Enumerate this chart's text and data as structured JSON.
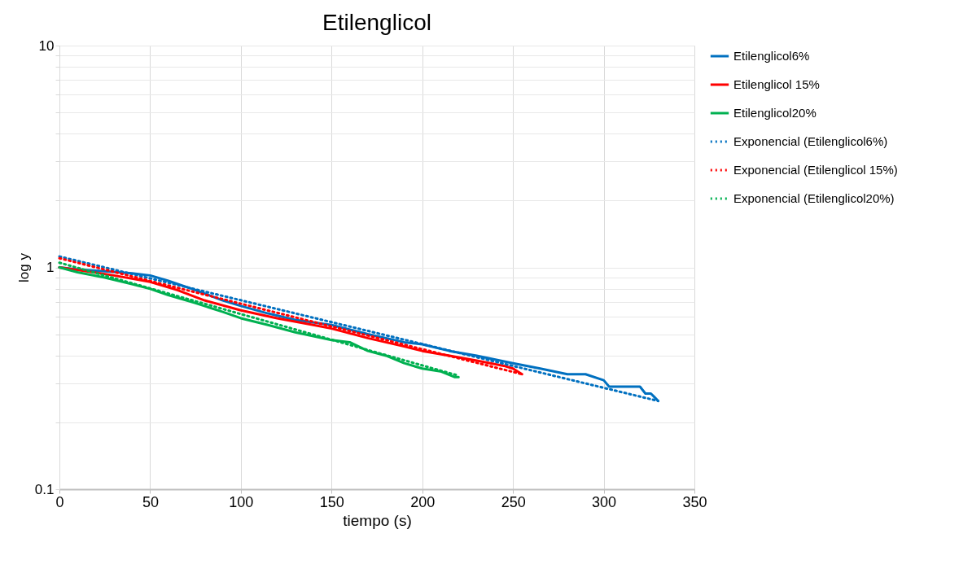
{
  "chart_data": {
    "type": "line",
    "title": "Etilenglicol",
    "xlabel": "tiempo (s)",
    "ylabel": "log y",
    "log": "y",
    "grid": true,
    "legend": "right",
    "marker": "none",
    "xlim": [
      0,
      350
    ],
    "xticks": [
      0,
      50,
      100,
      150,
      200,
      250,
      300,
      350
    ],
    "ylim": [
      0.1,
      10
    ],
    "yticks": [
      0.1,
      {
        "value": 0.2,
        "label": null
      },
      {
        "value": 0.3,
        "label": null
      },
      {
        "value": 0.4,
        "label": null
      },
      {
        "value": 0.5,
        "label": null
      },
      {
        "value": 0.6,
        "label": null
      },
      {
        "value": 0.7,
        "label": null
      },
      {
        "value": 0.8,
        "label": null
      },
      {
        "value": 0.9,
        "label": null
      },
      1,
      {
        "value": 2,
        "label": null
      },
      {
        "value": 3,
        "label": null
      },
      {
        "value": 4,
        "label": null
      },
      {
        "value": 5,
        "label": null
      },
      {
        "value": 6,
        "label": null
      },
      {
        "value": 7,
        "label": null
      },
      {
        "value": 8,
        "label": null
      },
      {
        "value": 9,
        "label": null
      },
      10
    ],
    "series": [
      {
        "name": "Etilenglicol6%",
        "color": "#0070c0",
        "line_style": "solid",
        "x": [
          0,
          10,
          25,
          40,
          50,
          60,
          75,
          90,
          100,
          115,
          130,
          150,
          170,
          190,
          200,
          215,
          230,
          250,
          265,
          280,
          290,
          300,
          303,
          320,
          323,
          326,
          328,
          330
        ],
        "values": [
          1,
          0.98,
          0.96,
          0.94,
          0.92,
          0.87,
          0.79,
          0.71,
          0.67,
          0.62,
          0.58,
          0.55,
          0.5,
          0.46,
          0.45,
          0.42,
          0.4,
          0.37,
          0.35,
          0.33,
          0.33,
          0.31,
          0.29,
          0.29,
          0.27,
          0.27,
          0.26,
          0.25
        ]
      },
      {
        "name": "Etilenglicol 15%",
        "color": "#ff0000",
        "line_style": "solid",
        "x": [
          0,
          15,
          30,
          50,
          65,
          80,
          100,
          120,
          140,
          150,
          170,
          190,
          200,
          215,
          230,
          245,
          250,
          255
        ],
        "values": [
          1,
          0.96,
          0.92,
          0.86,
          0.79,
          0.71,
          0.64,
          0.59,
          0.55,
          0.53,
          0.48,
          0.44,
          0.42,
          0.4,
          0.38,
          0.36,
          0.35,
          0.33
        ]
      },
      {
        "name": "Etilenglicol20%",
        "color": "#00b050",
        "line_style": "solid",
        "x": [
          0,
          10,
          25,
          40,
          50,
          60,
          75,
          90,
          100,
          115,
          130,
          140,
          150,
          160,
          170,
          180,
          190,
          200,
          210,
          218,
          220
        ],
        "values": [
          1,
          0.95,
          0.9,
          0.84,
          0.8,
          0.75,
          0.69,
          0.63,
          0.59,
          0.55,
          0.51,
          0.49,
          0.47,
          0.46,
          0.42,
          0.4,
          0.37,
          0.35,
          0.34,
          0.32,
          0.32
        ]
      },
      {
        "name": "Exponencial (Etilenglicol6%)",
        "color": "#0070c0",
        "line_style": "dotted",
        "x": [
          0,
          330
        ],
        "values": [
          1.12,
          0.25
        ]
      },
      {
        "name": "Exponencial (Etilenglicol 15%)",
        "color": "#ff0000",
        "line_style": "dotted",
        "x": [
          0,
          255
        ],
        "values": [
          1.1,
          0.33
        ]
      },
      {
        "name": "Exponencial (Etilenglicol20%)",
        "color": "#00b050",
        "line_style": "dotted",
        "x": [
          0,
          220
        ],
        "values": [
          1.05,
          0.325
        ]
      }
    ]
  }
}
